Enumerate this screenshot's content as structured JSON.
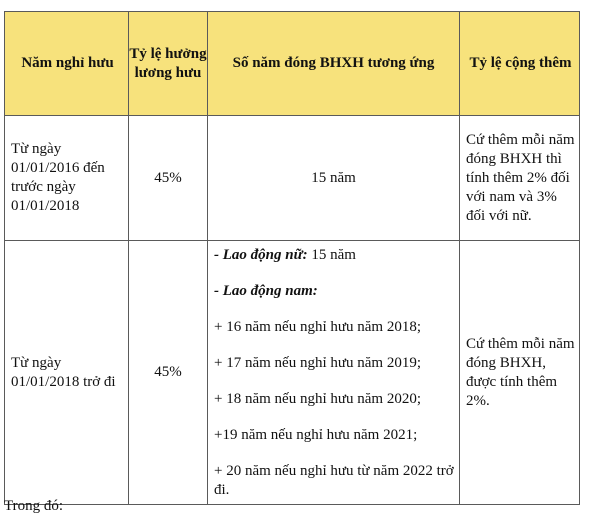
{
  "table": {
    "headers": {
      "col1": "Năm nghỉ hưu",
      "col2": "Tỷ lệ hưởng lương hưu",
      "col3": "Số năm đóng BHXH tương ứng",
      "col4": "Tỷ lệ cộng thêm"
    },
    "rows": [
      {
        "period": "Từ ngày 01/01/2016 đến trước ngày 01/01/2018",
        "rate": "45%",
        "years": "15 năm",
        "extra": "Cứ thêm mỗi năm đóng BHXH thì tính thêm 2% đối với nam và 3% đối với nữ."
      },
      {
        "period": "Từ ngày 01/01/2018 trở đi",
        "rate": "45%",
        "female_label": "- Lao động nữ:",
        "female_value": " 15 năm",
        "male_label": "- Lao động nam:",
        "male_items": [
          "+ 16 năm nếu nghỉ hưu năm 2018;",
          "+ 17 năm nếu nghỉ hưu năm 2019;",
          "+ 18 năm nếu nghỉ hưu năm 2020;",
          "+19 năm nếu nghỉ hưu năm 2021;",
          "+ 20 năm nếu nghỉ hưu từ năm 2022 trở đi."
        ],
        "extra": "Cứ thêm mỗi năm đóng BHXH, được tính thêm 2%."
      }
    ]
  },
  "footer_cut_text": "Trong đó:"
}
